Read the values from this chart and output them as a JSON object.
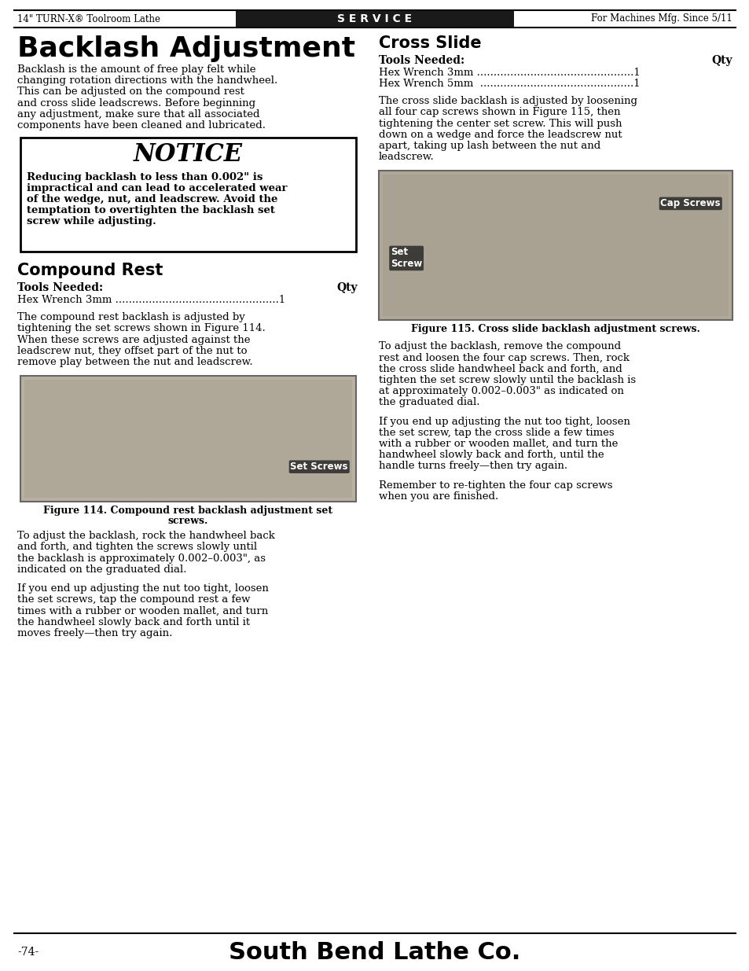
{
  "header_left": "14\" TURN-X® Toolroom Lathe",
  "header_center": "S E R V I C E",
  "header_right": "For Machines Mfg. Since 5/11",
  "page_title": "Backlash Adjustment",
  "intro_text": [
    "Backlash is the amount of free play felt while",
    "changing rotation directions with the handwheel.",
    "This can be adjusted on the compound rest",
    "and cross slide leadscrews. Before beginning",
    "any adjustment, make sure that all associated",
    "components have been cleaned and lubricated."
  ],
  "notice_title": "NOTICE",
  "notice_body": [
    "Reducing backlash to less than 0.002\" is",
    "impractical and can lead to accelerated wear",
    "of the wedge, nut, and leadscrew. Avoid the",
    "temptation to overtighten the backlash set",
    "screw while adjusting."
  ],
  "compound_rest_title": "Compound Rest",
  "tools_needed_label": "Tools Needed:",
  "tools_needed_qty": "Qty",
  "compound_tools": "Hex Wrench 3mm .................................................1",
  "compound_desc": [
    "The compound rest backlash is adjusted by",
    "tightening the set screws shown in Figure 114.",
    "When these screws are adjusted against the",
    "leadscrew nut, they offset part of the nut to",
    "remove play between the nut and leadscrew."
  ],
  "compound_desc_bold": "Figure 114",
  "fig114_caption_line1": "Figure 114. Compound rest backlash adjustment set",
  "fig114_caption_line2": "screws.",
  "compound_adjust_text": [
    "To adjust the backlash, rock the handwheel back",
    "and forth, and tighten the screws slowly until",
    "the backlash is approximately 0.002–0.003\", as",
    "indicated on the graduated dial."
  ],
  "compound_too_tight": [
    "If you end up adjusting the nut too tight, loosen",
    "the set screws, tap the compound rest a few",
    "times with a rubber or wooden mallet, and turn",
    "the handwheel slowly back and forth until it",
    "moves freely—then try again."
  ],
  "cross_slide_title": "Cross Slide",
  "cross_tools_needed_label": "Tools Needed:",
  "cross_tools_needed_qty": "Qty",
  "cross_tools_line1": "Hex Wrench 3mm ...............................................1",
  "cross_tools_line2": "Hex Wrench 5mm  ..............................................1",
  "cross_desc": [
    "The cross slide backlash is adjusted by loosening",
    "all four cap screws shown in Figure 115, then",
    "tightening the center set screw. This will push",
    "down on a wedge and force the leadscrew nut",
    "apart, taking up lash between the nut and",
    "leadscrew."
  ],
  "fig115_caption": "Figure 115. Cross slide backlash adjustment screws.",
  "cross_adjust_text": [
    "To adjust the backlash, remove the compound",
    "rest and loosen the four cap screws. Then, rock",
    "the cross slide handwheel back and forth, and",
    "tighten the set screw slowly until the backlash is",
    "at approximately 0.002–0.003\" as indicated on",
    "the graduated dial."
  ],
  "cross_tight_text": [
    "If you end up adjusting the nut too tight, loosen",
    "the set screw, tap the cross slide a few times",
    "with a rubber or wooden mallet, and turn the",
    "handwheel slowly back and forth, until the",
    "handle turns freely—then try again."
  ],
  "cross_remember": [
    "Remember to re-tighten the four cap screws",
    "when you are finished."
  ],
  "footer_page": "-74-",
  "footer_brand": "South Bend Lathe Co.",
  "bg_color": "#ffffff",
  "header_bg": "#1a1a1a",
  "header_text_color": "#ffffff",
  "body_text_color": "#000000",
  "border_color": "#000000"
}
